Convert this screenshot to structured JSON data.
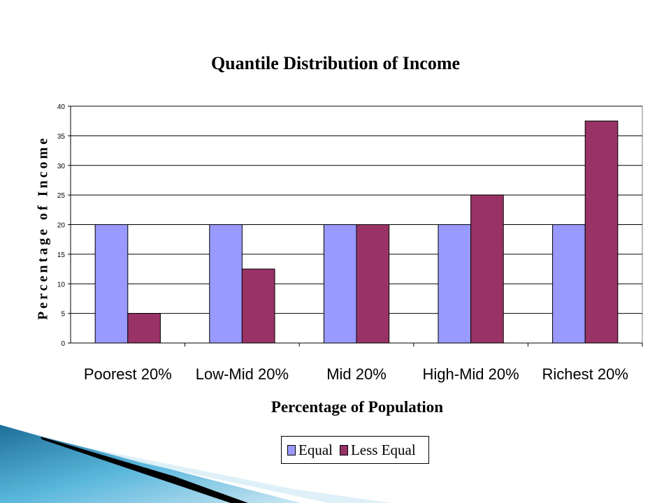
{
  "chart_data": {
    "type": "bar",
    "title": "Quantile Distribution of Income",
    "xlabel": "Percentage of Population",
    "ylabel": "Percentage of Income",
    "categories": [
      "Poorest 20%",
      "Low-Mid 20%",
      "Mid 20%",
      "High-Mid 20%",
      "Richest 20%"
    ],
    "series": [
      {
        "name": "Equal",
        "values": [
          20,
          20,
          20,
          20,
          20
        ],
        "color": "#9999ff"
      },
      {
        "name": "Less Equal",
        "values": [
          5,
          12.5,
          20,
          25,
          37.5
        ],
        "color": "#993366"
      }
    ],
    "ylim": [
      0,
      40
    ],
    "yticks": [
      0,
      5,
      10,
      15,
      20,
      25,
      30,
      35,
      40
    ],
    "grid": true,
    "legend_position": "bottom"
  }
}
